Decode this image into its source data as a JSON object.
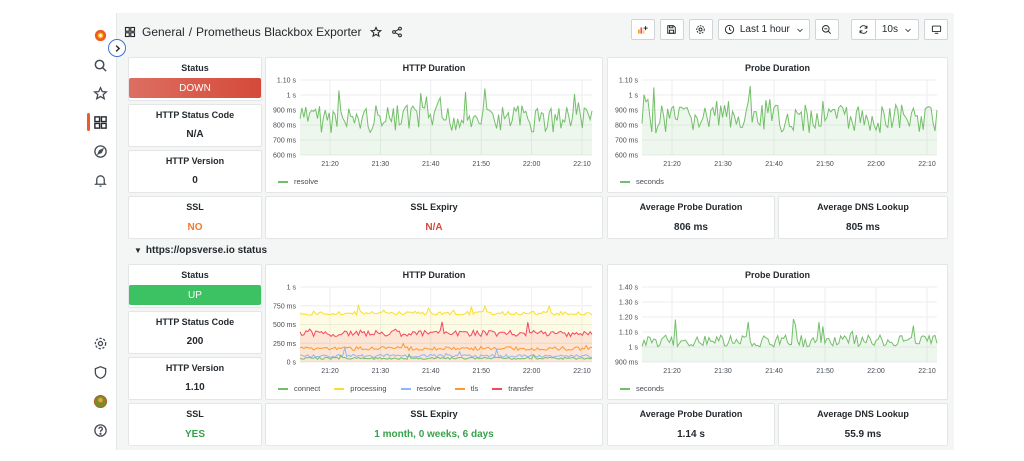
{
  "header": {
    "folder": "General",
    "separator": "/",
    "dashboard_title": "Prometheus Blackbox Exporter",
    "time_range": "Last 1 hour",
    "refresh_interval": "10s"
  },
  "row2_title": "https://opsverse.io status",
  "section1": {
    "status": {
      "title": "Status",
      "value": "DOWN",
      "color": "#d44a3a"
    },
    "http_status_code": {
      "title": "HTTP Status Code",
      "value": "N/A"
    },
    "http_version": {
      "title": "HTTP Version",
      "value": "0"
    },
    "ssl": {
      "title": "SSL",
      "value": "NO",
      "color": "#f2792d"
    },
    "ssl_expiry": {
      "title": "SSL Expiry",
      "value": "N/A",
      "color": "#d44a3a"
    },
    "avg_probe_duration": {
      "title": "Average Probe Duration",
      "value": "806 ms"
    },
    "avg_dns_lookup": {
      "title": "Average DNS Lookup",
      "value": "805 ms"
    },
    "http_duration": {
      "title": "HTTP Duration",
      "y_ticks": [
        "1.10 s",
        "1 s",
        "900 ms",
        "800 ms",
        "700 ms",
        "600 ms"
      ],
      "x_ticks": [
        "21:20",
        "21:30",
        "21:40",
        "21:50",
        "22:00",
        "22:10"
      ],
      "legend": [
        {
          "name": "resolve",
          "color": "#73bf69"
        }
      ]
    },
    "probe_duration": {
      "title": "Probe Duration",
      "y_ticks": [
        "1.10 s",
        "1 s",
        "900 ms",
        "800 ms",
        "700 ms",
        "600 ms"
      ],
      "x_ticks": [
        "21:20",
        "21:30",
        "21:40",
        "21:50",
        "22:00",
        "22:10"
      ],
      "legend": [
        {
          "name": "seconds",
          "color": "#73bf69"
        }
      ]
    }
  },
  "section2": {
    "status": {
      "title": "Status",
      "value": "UP",
      "color": "#3cc163"
    },
    "http_status_code": {
      "title": "HTTP Status Code",
      "value": "200"
    },
    "http_version": {
      "title": "HTTP Version",
      "value": "1.10"
    },
    "ssl": {
      "title": "SSL",
      "value": "YES",
      "color": "#37a24b"
    },
    "ssl_expiry": {
      "title": "SSL Expiry",
      "value": "1 month, 0 weeks, 6 days",
      "color": "#37a24b"
    },
    "avg_probe_duration": {
      "title": "Average Probe Duration",
      "value": "1.14 s"
    },
    "avg_dns_lookup": {
      "title": "Average DNS Lookup",
      "value": "55.9 ms"
    },
    "http_duration": {
      "title": "HTTP Duration",
      "y_ticks": [
        "1 s",
        "750 ms",
        "500 ms",
        "250 ms",
        "0 s"
      ],
      "x_ticks": [
        "21:20",
        "21:30",
        "21:40",
        "21:50",
        "22:00",
        "22:10"
      ],
      "legend": [
        {
          "name": "connect",
          "color": "#73bf69"
        },
        {
          "name": "processing",
          "color": "#fade2a"
        },
        {
          "name": "resolve",
          "color": "#8ab8ff"
        },
        {
          "name": "tls",
          "color": "#ff9830"
        },
        {
          "name": "transfer",
          "color": "#f2495c"
        }
      ]
    },
    "probe_duration": {
      "title": "Probe Duration",
      "y_ticks": [
        "1.40 s",
        "1.30 s",
        "1.20 s",
        "1.10 s",
        "1 s",
        "900 ms"
      ],
      "x_ticks": [
        "21:20",
        "21:30",
        "21:40",
        "21:50",
        "22:00",
        "22:10"
      ],
      "legend": [
        {
          "name": "seconds",
          "color": "#73bf69"
        }
      ]
    }
  }
}
